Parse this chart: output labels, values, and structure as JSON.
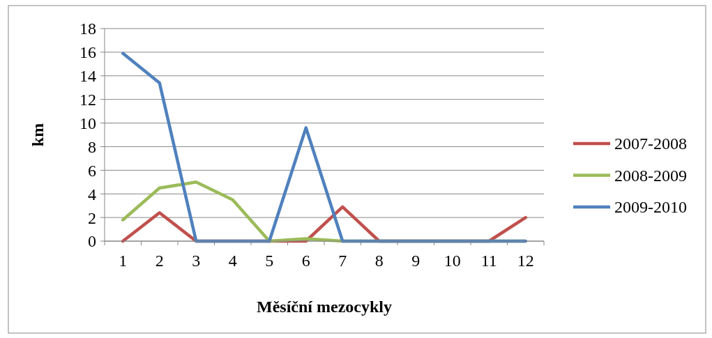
{
  "chart_data": {
    "type": "line",
    "xlabel": "Měsíční mezocykly",
    "ylabel": "km",
    "categories": [
      "1",
      "2",
      "3",
      "4",
      "5",
      "6",
      "7",
      "8",
      "9",
      "10",
      "11",
      "12"
    ],
    "series": [
      {
        "name": "2007-2008",
        "color": "#c0504d",
        "values": [
          0,
          2.4,
          0,
          0,
          0,
          0,
          2.9,
          0,
          0,
          0,
          0,
          2.0
        ]
      },
      {
        "name": "2008-2009",
        "color": "#9bbb59",
        "values": [
          1.8,
          4.5,
          5.0,
          3.5,
          0,
          0.2,
          0,
          0,
          0,
          0,
          0,
          0
        ]
      },
      {
        "name": "2009-2010",
        "color": "#4f81bd",
        "values": [
          15.9,
          13.4,
          0,
          0,
          0,
          9.6,
          0,
          0,
          0,
          0,
          0,
          0
        ]
      }
    ],
    "ylim": [
      0,
      18
    ],
    "yticks": [
      0,
      2,
      4,
      6,
      8,
      10,
      12,
      14,
      16,
      18
    ],
    "grid": "y",
    "legend": "right",
    "marker": "none",
    "line_style": "solid"
  }
}
